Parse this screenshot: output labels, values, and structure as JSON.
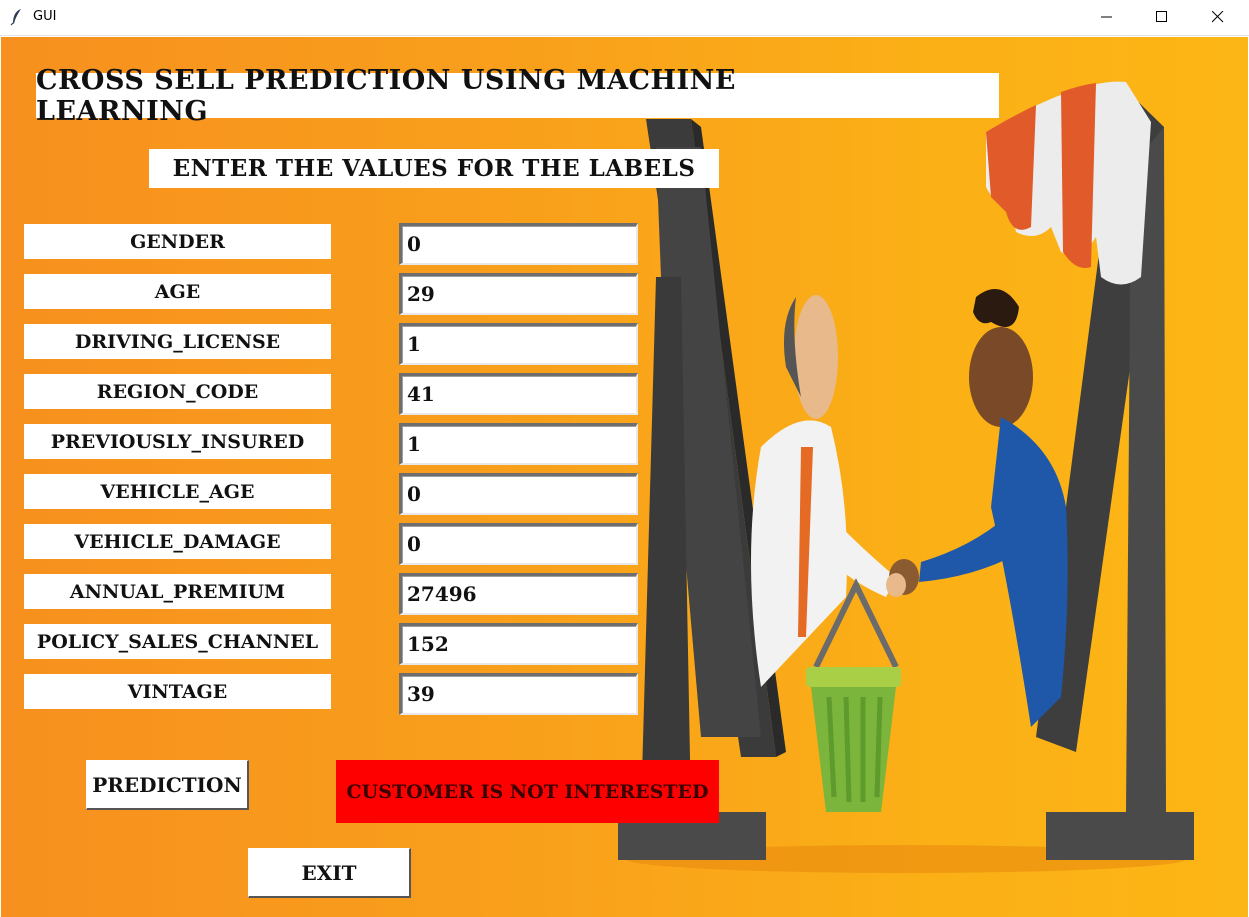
{
  "window": {
    "title": "GUI",
    "icons": {
      "app": "feather-icon",
      "minimize": "minimize-icon",
      "maximize": "maximize-icon",
      "close": "close-icon"
    }
  },
  "header": {
    "title": "CROSS SELL PREDICTION USING MACHINE LEARNING",
    "subtitle": "ENTER THE VALUES FOR THE LABELS"
  },
  "form": {
    "fields": [
      {
        "label": "GENDER",
        "value": "0"
      },
      {
        "label": "AGE",
        "value": "29"
      },
      {
        "label": "DRIVING_LICENSE",
        "value": "1"
      },
      {
        "label": "REGION_CODE",
        "value": "41"
      },
      {
        "label": "PREVIOUSLY_INSURED",
        "value": "1"
      },
      {
        "label": "VEHICLE_AGE",
        "value": "0"
      },
      {
        "label": "VEHICLE_DAMAGE",
        "value": "0"
      },
      {
        "label": "ANNUAL_PREMIUM",
        "value": "27496"
      },
      {
        "label": "POLICY_SALES_CHANNEL",
        "value": "152"
      },
      {
        "label": "VINTAGE",
        "value": "39"
      }
    ]
  },
  "actions": {
    "prediction_label": "PREDICTION",
    "exit_label": "EXIT"
  },
  "result": {
    "text": "CUSTOMER IS NOT INTERESTED",
    "color": "#ff0000"
  },
  "colors": {
    "background_start": "#f7901e",
    "background_end": "#fcb615",
    "panel": "#ffffff"
  }
}
